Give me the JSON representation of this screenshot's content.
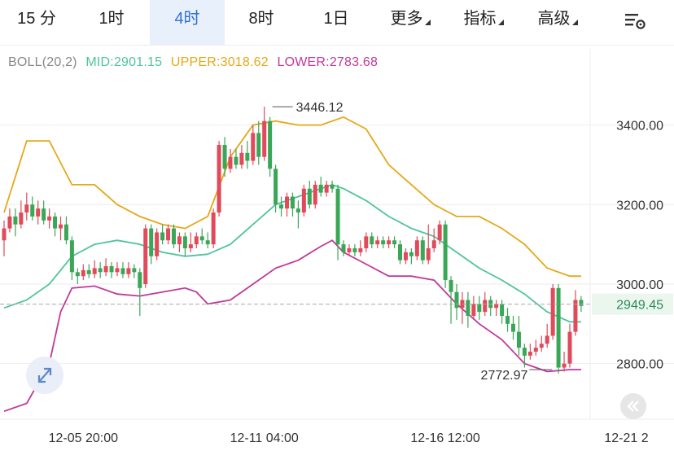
{
  "tabs": [
    {
      "label": "15 分",
      "active": false,
      "dropdown": false
    },
    {
      "label": "1时",
      "active": false,
      "dropdown": false
    },
    {
      "label": "4时",
      "active": true,
      "dropdown": false
    },
    {
      "label": "8时",
      "active": false,
      "dropdown": false
    },
    {
      "label": "1日",
      "active": false,
      "dropdown": false
    },
    {
      "label": "更多",
      "active": false,
      "dropdown": true
    },
    {
      "label": "指标",
      "active": false,
      "dropdown": true
    },
    {
      "label": "高级",
      "active": false,
      "dropdown": true
    }
  ],
  "settings_icon": "chart-settings-icon",
  "legend": {
    "name": "BOLL(20,2)",
    "mid": "MID:2901.15",
    "upper": "UPPER:3018.62",
    "lower": "LOWER:2783.68",
    "colors": {
      "name": "#888888",
      "mid": "#4fc3a1",
      "upper": "#e6a817",
      "lower": "#c0399a"
    }
  },
  "colors": {
    "up": "#e04a5a",
    "down": "#3aa757",
    "current_price_bg": "#ebf6ee",
    "current_price_text": "#2e8b57"
  },
  "chart_data": {
    "type": "candlestick",
    "indicator": "BOLL(20,2)",
    "ylim": [
      2660,
      3520
    ],
    "y_ticks": [
      "3400.00",
      "3200.00",
      "3000.00",
      "2800.00"
    ],
    "y_tick_values": [
      3400,
      3200,
      3000,
      2800
    ],
    "x_ticks": [
      "12-05 20:00",
      "12-11 04:00",
      "12-16 12:00",
      "12-21 2"
    ],
    "x_tick_index": [
      14,
      46,
      78,
      110
    ],
    "current_price": "2949.45",
    "current_price_value": 2949.45,
    "high_label": "3446.12",
    "high_index": 47,
    "low_label": "2772.97",
    "low_index": 92,
    "candles": [
      [
        0,
        3110,
        3140,
        3160,
        3070
      ],
      [
        1,
        3140,
        3170,
        3190,
        3130
      ],
      [
        2,
        3170,
        3150,
        3190,
        3120
      ],
      [
        3,
        3150,
        3180,
        3210,
        3140
      ],
      [
        4,
        3180,
        3200,
        3230,
        3160
      ],
      [
        5,
        3200,
        3170,
        3220,
        3160
      ],
      [
        6,
        3170,
        3190,
        3210,
        3150
      ],
      [
        7,
        3190,
        3160,
        3210,
        3150
      ],
      [
        8,
        3160,
        3170,
        3190,
        3140
      ],
      [
        9,
        3170,
        3140,
        3180,
        3120
      ],
      [
        10,
        3140,
        3150,
        3170,
        3110
      ],
      [
        11,
        3150,
        3110,
        3170,
        3100
      ],
      [
        12,
        3110,
        3030,
        3120,
        3010
      ],
      [
        13,
        3030,
        3020,
        3040,
        3000
      ],
      [
        14,
        3020,
        3035,
        3050,
        3010
      ],
      [
        15,
        3035,
        3025,
        3050,
        3015
      ],
      [
        16,
        3025,
        3040,
        3060,
        3015
      ],
      [
        17,
        3040,
        3030,
        3055,
        3015
      ],
      [
        18,
        3030,
        3045,
        3065,
        3020
      ],
      [
        19,
        3045,
        3030,
        3055,
        3015
      ],
      [
        20,
        3030,
        3040,
        3055,
        3020
      ],
      [
        21,
        3040,
        3025,
        3055,
        3015
      ],
      [
        22,
        3025,
        3040,
        3055,
        3015
      ],
      [
        23,
        3040,
        3030,
        3050,
        3015
      ],
      [
        24,
        3030,
        2990,
        3040,
        2920
      ],
      [
        25,
        3000,
        3140,
        3150,
        2990
      ],
      [
        26,
        3140,
        3070,
        3150,
        3050
      ],
      [
        27,
        3070,
        3130,
        3140,
        3060
      ],
      [
        28,
        3130,
        3110,
        3150,
        3100
      ],
      [
        29,
        3110,
        3140,
        3150,
        3100
      ],
      [
        30,
        3140,
        3100,
        3150,
        3090
      ],
      [
        31,
        3100,
        3120,
        3130,
        3080
      ],
      [
        32,
        3120,
        3090,
        3130,
        3070
      ],
      [
        33,
        3090,
        3100,
        3130,
        3080
      ],
      [
        34,
        3100,
        3120,
        3130,
        3090
      ],
      [
        35,
        3120,
        3110,
        3140,
        3100
      ],
      [
        36,
        3110,
        3100,
        3130,
        3090
      ],
      [
        37,
        3100,
        3180,
        3190,
        3090
      ],
      [
        38,
        3180,
        3350,
        3360,
        3170
      ],
      [
        39,
        3350,
        3290,
        3370,
        3270
      ],
      [
        40,
        3290,
        3320,
        3340,
        3280
      ],
      [
        41,
        3320,
        3300,
        3340,
        3290
      ],
      [
        42,
        3300,
        3330,
        3350,
        3290
      ],
      [
        43,
        3330,
        3310,
        3360,
        3290
      ],
      [
        44,
        3310,
        3380,
        3400,
        3300
      ],
      [
        45,
        3380,
        3320,
        3410,
        3300
      ],
      [
        46,
        3320,
        3410,
        3446,
        3310
      ],
      [
        47,
        3410,
        3290,
        3420,
        3270
      ],
      [
        48,
        3290,
        3200,
        3300,
        3180
      ],
      [
        49,
        3200,
        3190,
        3220,
        3170
      ],
      [
        50,
        3190,
        3220,
        3230,
        3170
      ],
      [
        51,
        3220,
        3190,
        3230,
        3170
      ],
      [
        52,
        3190,
        3180,
        3210,
        3140
      ],
      [
        53,
        3180,
        3240,
        3250,
        3170
      ],
      [
        54,
        3240,
        3200,
        3260,
        3190
      ],
      [
        55,
        3200,
        3250,
        3260,
        3190
      ],
      [
        56,
        3250,
        3230,
        3270,
        3220
      ],
      [
        57,
        3230,
        3250,
        3260,
        3220
      ],
      [
        58,
        3250,
        3240,
        3260,
        3230
      ],
      [
        59,
        3240,
        3100,
        3250,
        3060
      ],
      [
        60,
        3100,
        3080,
        3110,
        3070
      ],
      [
        61,
        3080,
        3090,
        3100,
        3070
      ],
      [
        62,
        3090,
        3080,
        3100,
        3070
      ],
      [
        63,
        3080,
        3090,
        3110,
        3070
      ],
      [
        64,
        3090,
        3120,
        3130,
        3080
      ],
      [
        65,
        3120,
        3100,
        3130,
        3090
      ],
      [
        66,
        3100,
        3110,
        3120,
        3090
      ],
      [
        67,
        3110,
        3100,
        3120,
        3090
      ],
      [
        68,
        3100,
        3110,
        3120,
        3090
      ],
      [
        69,
        3110,
        3100,
        3120,
        3090
      ],
      [
        70,
        3100,
        3060,
        3110,
        3050
      ],
      [
        71,
        3060,
        3080,
        3090,
        3050
      ],
      [
        72,
        3080,
        3070,
        3090,
        3050
      ],
      [
        73,
        3070,
        3110,
        3120,
        3060
      ],
      [
        74,
        3110,
        3060,
        3120,
        3050
      ],
      [
        75,
        3060,
        3090,
        3150,
        3050
      ],
      [
        76,
        3090,
        3110,
        3140,
        3080
      ],
      [
        77,
        3110,
        3150,
        3160,
        3100
      ],
      [
        78,
        3150,
        3010,
        3160,
        2990
      ],
      [
        79,
        3010,
        2980,
        3020,
        2900
      ],
      [
        80,
        2980,
        2940,
        3000,
        2910
      ],
      [
        81,
        2940,
        2960,
        2980,
        2900
      ],
      [
        82,
        2960,
        2920,
        2980,
        2890
      ],
      [
        83,
        2920,
        2950,
        2970,
        2910
      ],
      [
        84,
        2950,
        2930,
        2970,
        2910
      ],
      [
        85,
        2930,
        2960,
        2980,
        2920
      ],
      [
        86,
        2960,
        2940,
        2970,
        2920
      ],
      [
        87,
        2940,
        2950,
        2960,
        2920
      ],
      [
        88,
        2950,
        2920,
        2960,
        2900
      ],
      [
        89,
        2920,
        2900,
        2940,
        2880
      ],
      [
        90,
        2900,
        2880,
        2920,
        2860
      ],
      [
        91,
        2880,
        2840,
        2920,
        2820
      ],
      [
        92,
        2840,
        2820,
        2850,
        2790
      ],
      [
        93,
        2820,
        2830,
        2850,
        2810
      ],
      [
        94,
        2830,
        2840,
        2860,
        2820
      ],
      [
        95,
        2840,
        2850,
        2870,
        2830
      ],
      [
        96,
        2850,
        2870,
        2900,
        2840
      ],
      [
        97,
        2870,
        2990,
        3000,
        2860
      ],
      [
        98,
        2990,
        2790,
        3000,
        2775
      ],
      [
        99,
        2790,
        2800,
        2830,
        2780
      ],
      [
        100,
        2800,
        2880,
        2900,
        2790
      ],
      [
        101,
        2880,
        2960,
        2985,
        2870
      ],
      [
        102,
        2960,
        2945,
        2970,
        2930
      ]
    ],
    "mid_band": [
      [
        0,
        2940
      ],
      [
        4,
        2960
      ],
      [
        8,
        3000
      ],
      [
        12,
        3070
      ],
      [
        16,
        3100
      ],
      [
        20,
        3110
      ],
      [
        24,
        3100
      ],
      [
        28,
        3080
      ],
      [
        32,
        3070
      ],
      [
        36,
        3075
      ],
      [
        40,
        3100
      ],
      [
        44,
        3150
      ],
      [
        48,
        3200
      ],
      [
        52,
        3220
      ],
      [
        56,
        3240
      ],
      [
        58,
        3250
      ],
      [
        60,
        3240
      ],
      [
        64,
        3210
      ],
      [
        68,
        3170
      ],
      [
        72,
        3140
      ],
      [
        76,
        3120
      ],
      [
        80,
        3080
      ],
      [
        84,
        3040
      ],
      [
        88,
        3010
      ],
      [
        92,
        2975
      ],
      [
        96,
        2930
      ],
      [
        100,
        2905
      ],
      [
        102,
        2905
      ]
    ],
    "upper_band": [
      [
        0,
        3180
      ],
      [
        4,
        3360
      ],
      [
        8,
        3360
      ],
      [
        12,
        3250
      ],
      [
        16,
        3250
      ],
      [
        20,
        3200
      ],
      [
        24,
        3170
      ],
      [
        28,
        3150
      ],
      [
        32,
        3140
      ],
      [
        36,
        3170
      ],
      [
        40,
        3320
      ],
      [
        44,
        3400
      ],
      [
        48,
        3410
      ],
      [
        52,
        3400
      ],
      [
        56,
        3400
      ],
      [
        60,
        3420
      ],
      [
        64,
        3390
      ],
      [
        68,
        3300
      ],
      [
        72,
        3250
      ],
      [
        76,
        3200
      ],
      [
        80,
        3170
      ],
      [
        84,
        3170
      ],
      [
        88,
        3140
      ],
      [
        92,
        3100
      ],
      [
        96,
        3040
      ],
      [
        100,
        3020
      ],
      [
        102,
        3020
      ]
    ],
    "lower_band": [
      [
        0,
        2680
      ],
      [
        4,
        2700
      ],
      [
        8,
        2800
      ],
      [
        10,
        2930
      ],
      [
        12,
        2990
      ],
      [
        16,
        2995
      ],
      [
        20,
        2975
      ],
      [
        24,
        2970
      ],
      [
        28,
        2980
      ],
      [
        32,
        2990
      ],
      [
        34,
        2980
      ],
      [
        36,
        2950
      ],
      [
        40,
        2960
      ],
      [
        44,
        3000
      ],
      [
        48,
        3040
      ],
      [
        52,
        3060
      ],
      [
        56,
        3095
      ],
      [
        58,
        3110
      ],
      [
        60,
        3080
      ],
      [
        64,
        3050
      ],
      [
        68,
        3020
      ],
      [
        72,
        3020
      ],
      [
        76,
        3010
      ],
      [
        80,
        2950
      ],
      [
        84,
        2900
      ],
      [
        88,
        2860
      ],
      [
        92,
        2800
      ],
      [
        96,
        2780
      ],
      [
        100,
        2785
      ],
      [
        102,
        2785
      ]
    ]
  }
}
